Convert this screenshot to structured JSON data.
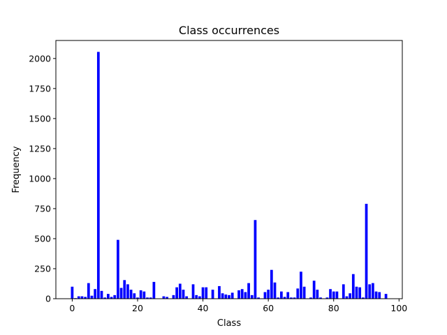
{
  "chart_data": {
    "type": "bar",
    "title": "Class occurrences",
    "xlabel": "Class",
    "ylabel": "Frequency",
    "xlim": [
      -5,
      101
    ],
    "ylim": [
      0,
      2150
    ],
    "xticks": [
      "0",
      "20",
      "40",
      "60",
      "80",
      "100"
    ],
    "xtick_values": [
      0,
      20,
      40,
      60,
      80,
      100
    ],
    "yticks": [
      "0",
      "250",
      "500",
      "750",
      "1000",
      "1250",
      "1500",
      "1750",
      "2000"
    ],
    "ytick_values": [
      0,
      250,
      500,
      750,
      1000,
      1250,
      1500,
      1750,
      2000
    ],
    "bar_color": "#0000ff",
    "grid": false,
    "x": [
      0,
      1,
      2,
      3,
      4,
      5,
      6,
      7,
      8,
      9,
      10,
      11,
      12,
      13,
      14,
      15,
      16,
      17,
      18,
      19,
      20,
      21,
      22,
      23,
      24,
      25,
      26,
      27,
      28,
      29,
      30,
      31,
      32,
      33,
      34,
      35,
      36,
      37,
      38,
      39,
      40,
      41,
      42,
      43,
      44,
      45,
      46,
      47,
      48,
      49,
      50,
      51,
      52,
      53,
      54,
      55,
      56,
      57,
      58,
      59,
      60,
      61,
      62,
      63,
      64,
      65,
      66,
      67,
      68,
      69,
      70,
      71,
      72,
      73,
      74,
      75,
      76,
      77,
      78,
      79,
      80,
      81,
      82,
      83,
      84,
      85,
      86,
      87,
      88,
      89,
      90,
      91,
      92,
      93,
      94,
      95,
      96,
      97
    ],
    "values": [
      100,
      5,
      20,
      20,
      15,
      130,
      25,
      80,
      2055,
      65,
      10,
      40,
      15,
      30,
      490,
      90,
      155,
      120,
      75,
      45,
      10,
      70,
      60,
      10,
      10,
      140,
      0,
      0,
      20,
      15,
      0,
      30,
      95,
      125,
      75,
      20,
      0,
      120,
      30,
      20,
      95,
      95,
      0,
      75,
      0,
      105,
      45,
      35,
      30,
      50,
      0,
      70,
      80,
      55,
      130,
      30,
      655,
      10,
      0,
      55,
      75,
      240,
      135,
      10,
      60,
      15,
      55,
      10,
      10,
      85,
      225,
      100,
      0,
      10,
      150,
      75,
      10,
      0,
      10,
      80,
      60,
      60,
      0,
      120,
      20,
      45,
      205,
      100,
      95,
      10,
      790,
      120,
      130,
      60,
      55,
      0,
      40,
      0
    ]
  }
}
